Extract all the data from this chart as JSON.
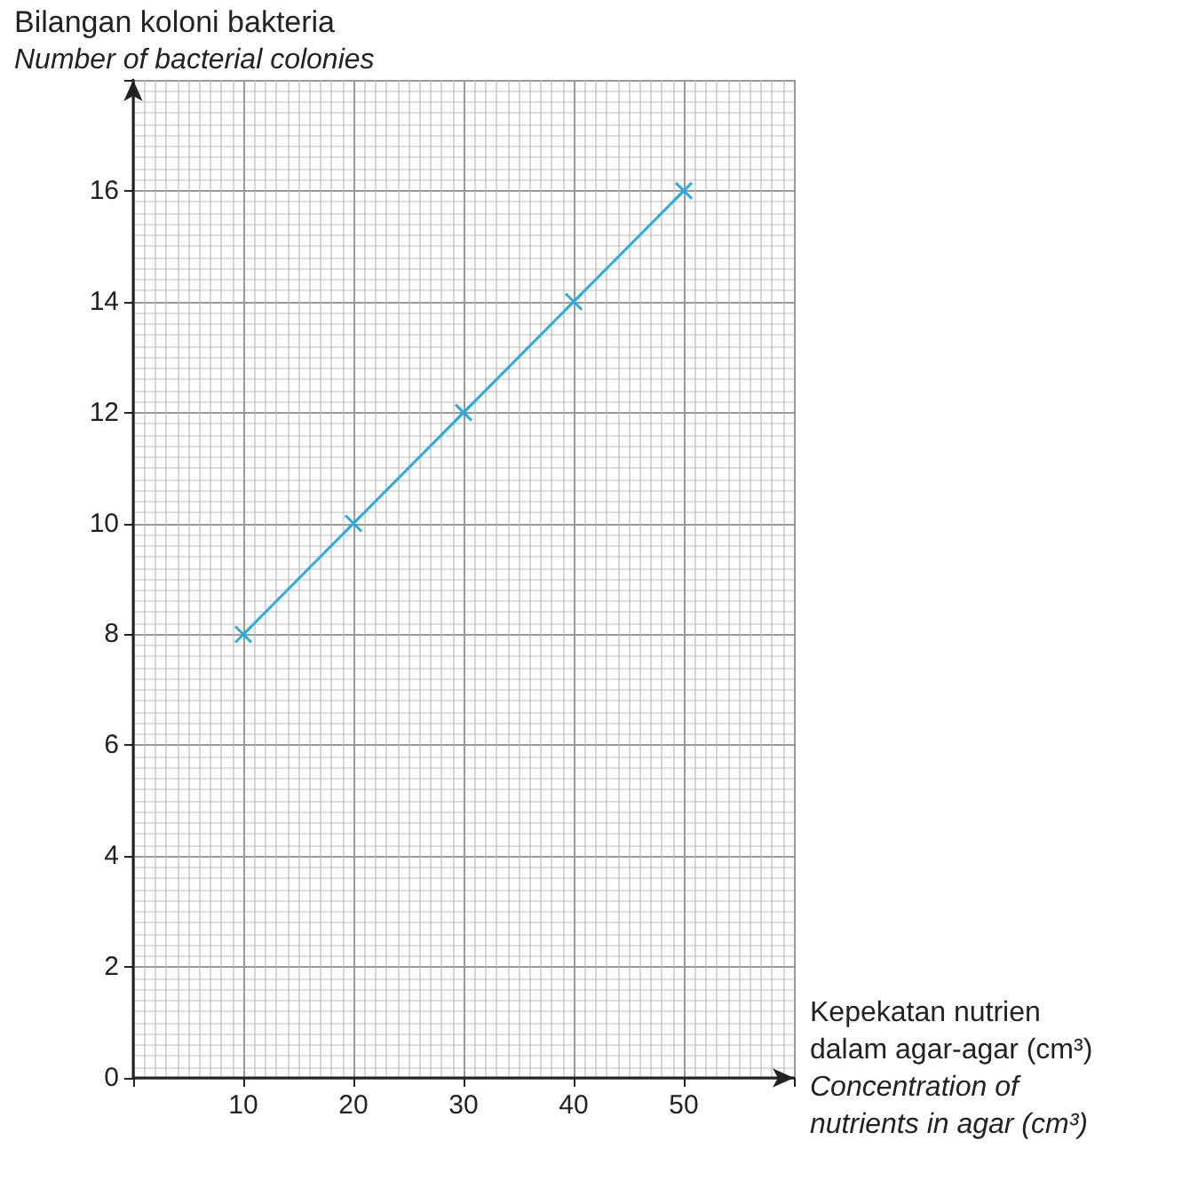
{
  "chart_data": {
    "type": "line",
    "xlabel": "Kepekatan nutrien dalam agar-agar (cm³)\nConcentration of nutrients in agar (cm³)",
    "ylabel": "Bilangan koloni bakteria\nNumber of bacterial colonies",
    "x": [
      10,
      20,
      30,
      40,
      50
    ],
    "series": [
      {
        "color": "#29abe2",
        "values": [
          8,
          10,
          12,
          14,
          16
        ]
      }
    ],
    "xlim": [
      0,
      60
    ],
    "xticks": [
      10,
      20,
      30,
      40,
      50
    ],
    "ylim": [
      0,
      18
    ],
    "yticks": [
      0,
      2,
      4,
      6,
      8,
      10,
      12,
      14,
      16
    ],
    "grid": true,
    "marker": "cross",
    "line_style": "solid"
  }
}
